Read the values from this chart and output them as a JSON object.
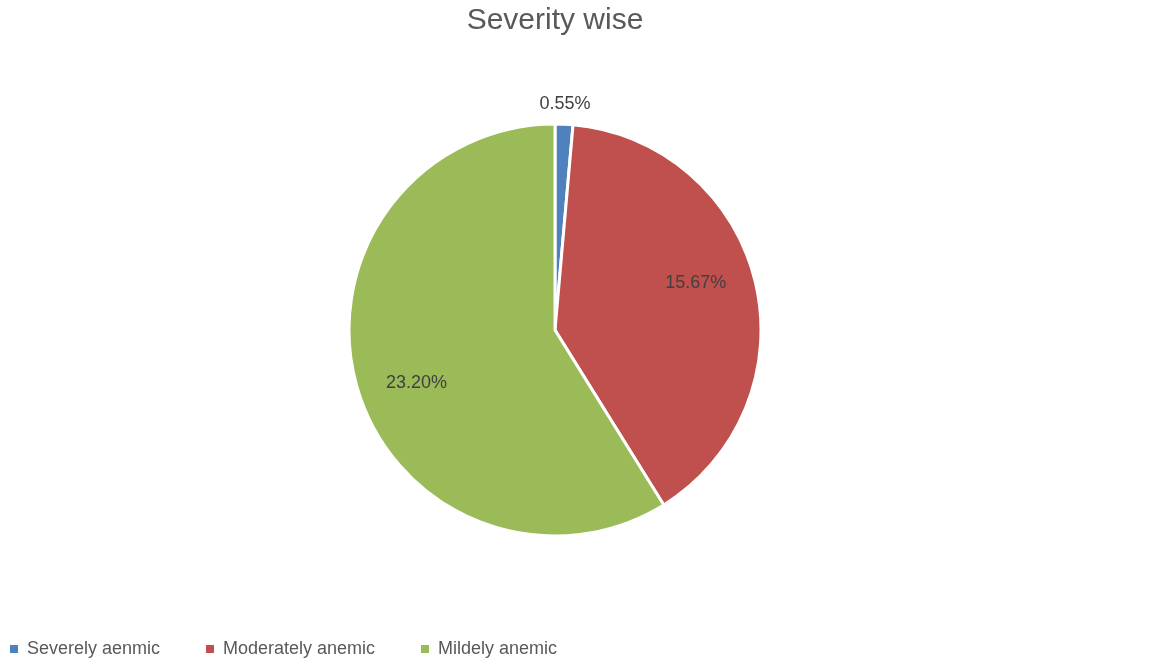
{
  "chart_data": {
    "type": "pie",
    "title": "Severity wise",
    "categories": [
      "Severely aenmic",
      "Moderately anemic",
      "Mildely anemic"
    ],
    "values": [
      0.55,
      15.67,
      23.2
    ],
    "value_labels": [
      "0.55%",
      "15.67%",
      "23.20%"
    ],
    "colors": [
      "#4f81bd",
      "#c0504d",
      "#9bbb59"
    ],
    "legend": "bottom"
  }
}
